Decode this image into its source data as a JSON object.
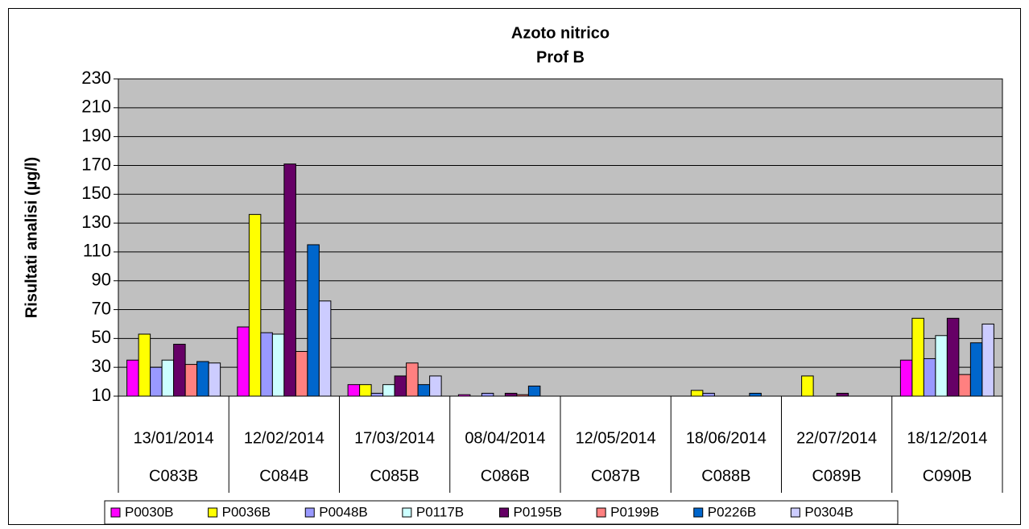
{
  "chart_data": {
    "type": "bar",
    "title": [
      "Azoto nitrico",
      "Prof B"
    ],
    "y_label": "Risultati analisi (µg/l)",
    "categories": [
      "13/01/2014",
      "12/02/2014",
      "17/03/2014",
      "08/04/2014",
      "12/05/2014",
      "18/06/2014",
      "22/07/2014",
      "18/12/2014"
    ],
    "groups": [
      "C083B",
      "C084B",
      "C085B",
      "C086B",
      "C087B",
      "C088B",
      "C089B",
      "C090B"
    ],
    "series": [
      {
        "name": "P0030B",
        "color": "#ff00ff",
        "values": [
          35,
          58,
          18,
          11,
          null,
          null,
          null,
          35
        ]
      },
      {
        "name": "P0036B",
        "color": "#ffff00",
        "values": [
          53,
          136,
          18,
          null,
          null,
          14,
          24,
          64
        ]
      },
      {
        "name": "P0048B",
        "color": "#9999ff",
        "values": [
          30,
          54,
          12,
          12,
          null,
          12,
          null,
          36
        ]
      },
      {
        "name": "P0117B",
        "color": "#ccffff",
        "values": [
          35,
          53,
          18,
          null,
          null,
          null,
          null,
          52
        ]
      },
      {
        "name": "P0195B",
        "color": "#660066",
        "values": [
          46,
          171,
          24,
          12,
          null,
          null,
          12,
          64
        ]
      },
      {
        "name": "P0199B",
        "color": "#ff8080",
        "values": [
          32,
          41,
          33,
          11,
          null,
          null,
          null,
          25
        ]
      },
      {
        "name": "P0226B",
        "color": "#0066cc",
        "values": [
          34,
          115,
          18,
          17,
          null,
          12,
          null,
          47
        ]
      },
      {
        "name": "P0304B",
        "color": "#ccccff",
        "values": [
          33,
          76,
          24,
          null,
          null,
          null,
          null,
          60
        ]
      }
    ],
    "ylim": [
      10,
      230
    ],
    "yticks": [
      10,
      30,
      50,
      70,
      90,
      110,
      130,
      150,
      170,
      190,
      210,
      230
    ],
    "grid": true,
    "plot_background": "#c0c0c0",
    "legend": "bottom"
  }
}
